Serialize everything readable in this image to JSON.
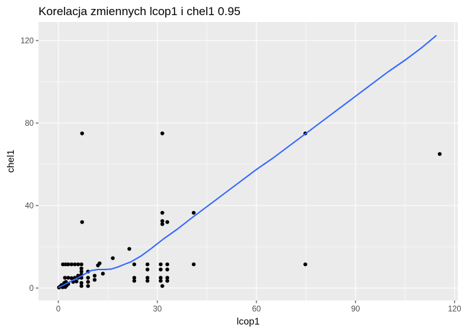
{
  "chart_data": {
    "type": "scatter",
    "title": "Korelacja zmiennych lcop1 i chel1 0.95",
    "xlabel": "lcop1",
    "ylabel": "chel1",
    "xlim": [
      -6,
      121
    ],
    "ylim": [
      -6,
      129
    ],
    "x_ticks": [
      0,
      30,
      60,
      90,
      120
    ],
    "y_ticks": [
      0,
      40,
      80,
      120
    ],
    "x_tick_labels": [
      "0",
      "30",
      "60",
      "90",
      "120"
    ],
    "y_tick_labels": [
      "0",
      "40",
      "80",
      "120"
    ],
    "grid": true,
    "legend": "none",
    "colors": {
      "panel_background": "#EBEBEB",
      "grid_line": "#FFFFFF",
      "points": "#000000",
      "smooth_line": "#3366FF",
      "tick_mark": "#333333"
    },
    "points": [
      {
        "x": 0.2,
        "y": 0.3
      },
      {
        "x": 0.6,
        "y": 0.8
      },
      {
        "x": 1.0,
        "y": 1.5
      },
      {
        "x": 1.3,
        "y": 0.4
      },
      {
        "x": 1.7,
        "y": 0.9
      },
      {
        "x": 2.1,
        "y": 0.5
      },
      {
        "x": 2.5,
        "y": 1.2
      },
      {
        "x": 1.8,
        "y": 2.5
      },
      {
        "x": 2.3,
        "y": 3.0
      },
      {
        "x": 3.0,
        "y": 2.0
      },
      {
        "x": 1.4,
        "y": 11.5
      },
      {
        "x": 2.2,
        "y": 11.5
      },
      {
        "x": 3.0,
        "y": 11.5
      },
      {
        "x": 4.0,
        "y": 11.5
      },
      {
        "x": 5.0,
        "y": 11.5
      },
      {
        "x": 6.0,
        "y": 11.5
      },
      {
        "x": 7.0,
        "y": 11.5
      },
      {
        "x": 2.0,
        "y": 5.0
      },
      {
        "x": 3.0,
        "y": 5.0
      },
      {
        "x": 4.0,
        "y": 4.8
      },
      {
        "x": 5.0,
        "y": 5.0
      },
      {
        "x": 6.0,
        "y": 5.0
      },
      {
        "x": 7.0,
        "y": 5.0
      },
      {
        "x": 4.5,
        "y": 3.0
      },
      {
        "x": 5.5,
        "y": 3.2
      },
      {
        "x": 6.0,
        "y": 6.0
      },
      {
        "x": 7.0,
        "y": 6.5
      },
      {
        "x": 7.0,
        "y": 1.0
      },
      {
        "x": 7.0,
        "y": 2.5
      },
      {
        "x": 7.0,
        "y": 8.0
      },
      {
        "x": 7.0,
        "y": 9.5
      },
      {
        "x": 9.0,
        "y": 8.0
      },
      {
        "x": 9.0,
        "y": 5.0
      },
      {
        "x": 9.0,
        "y": 1.0
      },
      {
        "x": 9.0,
        "y": 3.0
      },
      {
        "x": 11.0,
        "y": 4.0
      },
      {
        "x": 11.0,
        "y": 6.0
      },
      {
        "x": 12.0,
        "y": 11.0
      },
      {
        "x": 12.5,
        "y": 12.0
      },
      {
        "x": 13.5,
        "y": 7.0
      },
      {
        "x": 7.2,
        "y": 75.0
      },
      {
        "x": 7.2,
        "y": 32.0
      },
      {
        "x": 16.5,
        "y": 14.5
      },
      {
        "x": 21.5,
        "y": 19.0
      },
      {
        "x": 23.0,
        "y": 11.5
      },
      {
        "x": 23.0,
        "y": 5.0
      },
      {
        "x": 23.0,
        "y": 3.5
      },
      {
        "x": 27.0,
        "y": 11.5
      },
      {
        "x": 27.0,
        "y": 9.0
      },
      {
        "x": 27.0,
        "y": 5.0
      },
      {
        "x": 27.0,
        "y": 3.5
      },
      {
        "x": 31.0,
        "y": 11.5
      },
      {
        "x": 31.0,
        "y": 9.0
      },
      {
        "x": 31.0,
        "y": 5.0
      },
      {
        "x": 31.0,
        "y": 3.5
      },
      {
        "x": 31.5,
        "y": 1.0
      },
      {
        "x": 33.0,
        "y": 11.5
      },
      {
        "x": 33.0,
        "y": 9.0
      },
      {
        "x": 33.0,
        "y": 5.0
      },
      {
        "x": 33.0,
        "y": 3.5
      },
      {
        "x": 31.5,
        "y": 75.0
      },
      {
        "x": 31.5,
        "y": 36.5
      },
      {
        "x": 31.5,
        "y": 32.5
      },
      {
        "x": 31.5,
        "y": 31.0
      },
      {
        "x": 33.0,
        "y": 32.0
      },
      {
        "x": 41.0,
        "y": 36.5
      },
      {
        "x": 41.0,
        "y": 11.5
      },
      {
        "x": 74.8,
        "y": 75.0
      },
      {
        "x": 74.8,
        "y": 11.5
      },
      {
        "x": 115.5,
        "y": 65.0
      }
    ],
    "smooth_line": [
      {
        "x": 0.0,
        "y": 0.2
      },
      {
        "x": 2.0,
        "y": 1.8
      },
      {
        "x": 4.0,
        "y": 3.4
      },
      {
        "x": 6.0,
        "y": 5.0
      },
      {
        "x": 8.0,
        "y": 6.8
      },
      {
        "x": 10.0,
        "y": 8.5
      },
      {
        "x": 12.0,
        "y": 9.0
      },
      {
        "x": 14.0,
        "y": 9.0
      },
      {
        "x": 16.0,
        "y": 9.2
      },
      {
        "x": 18.0,
        "y": 10.2
      },
      {
        "x": 20.0,
        "y": 11.5
      },
      {
        "x": 22.0,
        "y": 12.7
      },
      {
        "x": 25.0,
        "y": 15.5
      },
      {
        "x": 28.0,
        "y": 19.0
      },
      {
        "x": 32.0,
        "y": 24.0
      },
      {
        "x": 36.0,
        "y": 28.5
      },
      {
        "x": 40.0,
        "y": 33.5
      },
      {
        "x": 45.0,
        "y": 39.5
      },
      {
        "x": 50.0,
        "y": 45.5
      },
      {
        "x": 55.0,
        "y": 51.5
      },
      {
        "x": 60.0,
        "y": 57.5
      },
      {
        "x": 65.0,
        "y": 63.0
      },
      {
        "x": 70.0,
        "y": 69.0
      },
      {
        "x": 75.0,
        "y": 75.0
      },
      {
        "x": 80.0,
        "y": 81.0
      },
      {
        "x": 85.0,
        "y": 87.0
      },
      {
        "x": 90.0,
        "y": 93.0
      },
      {
        "x": 95.0,
        "y": 99.0
      },
      {
        "x": 100.0,
        "y": 105.0
      },
      {
        "x": 105.0,
        "y": 110.5
      },
      {
        "x": 110.0,
        "y": 116.5
      },
      {
        "x": 114.5,
        "y": 122.5
      }
    ]
  }
}
